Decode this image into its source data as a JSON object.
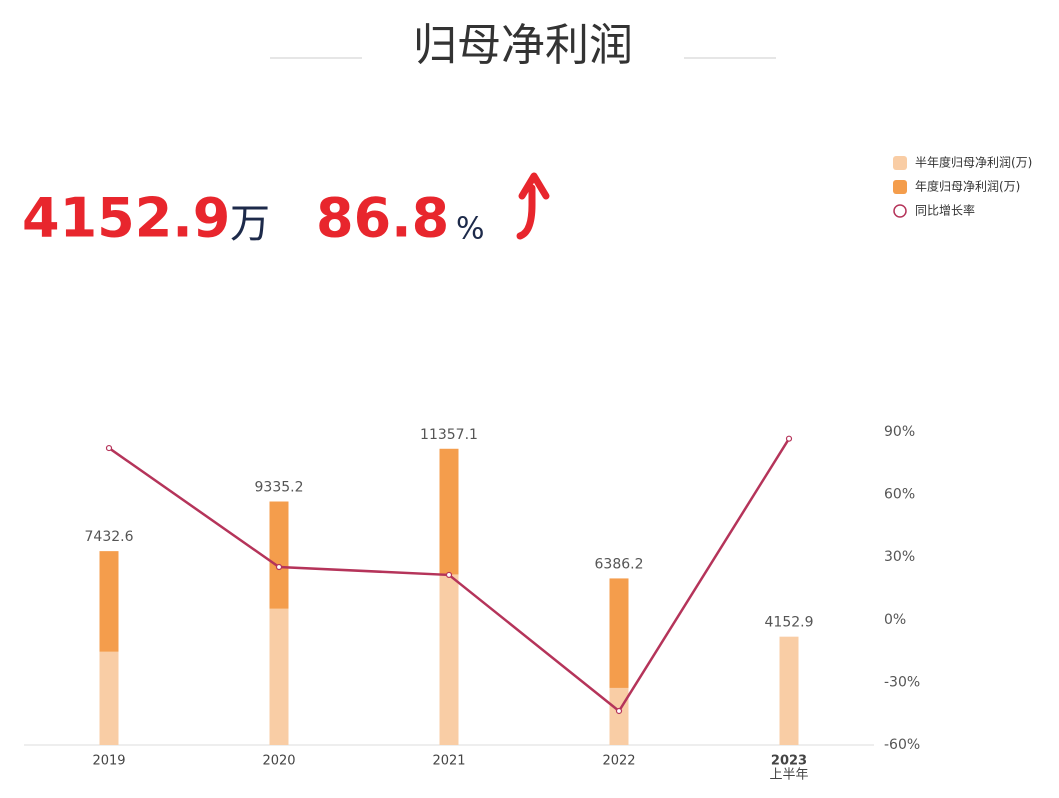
{
  "chart_data": {
    "type": "bar-line",
    "title": "归母净利润",
    "headline": {
      "value": "4152.9",
      "value_unit": "万",
      "growth": "86.8",
      "growth_unit": "%"
    },
    "categories": [
      "2019",
      "2020",
      "2021",
      "2022",
      "2023"
    ],
    "category_notes": [
      null,
      null,
      null,
      null,
      "上半年"
    ],
    "ylim": [
      0,
      12000
    ],
    "y2lim": [
      -60,
      90
    ],
    "y2ticks": [
      {
        "value": 90,
        "label": "90%"
      },
      {
        "value": 60,
        "label": "60%"
      },
      {
        "value": 30,
        "label": "30%"
      },
      {
        "value": 0,
        "label": "0%"
      },
      {
        "value": -30,
        "label": "-30%"
      },
      {
        "value": -60,
        "label": "-60%"
      }
    ],
    "series": [
      {
        "name": "半年度归母净利润(万)",
        "color": "#f9cda5",
        "values": [
          3580,
          5230,
          6540,
          2190,
          4152.9
        ]
      },
      {
        "name": "年度归母净利润(万)",
        "color": "#f49d4c",
        "values": [
          7432.6,
          9335.2,
          11357.1,
          6386.2,
          null
        ]
      },
      {
        "name": "同比增长率",
        "color": "#b5345a",
        "axis": "y2",
        "values": [
          82.3,
          25.3,
          21.5,
          -43.7,
          86.8
        ]
      }
    ]
  }
}
